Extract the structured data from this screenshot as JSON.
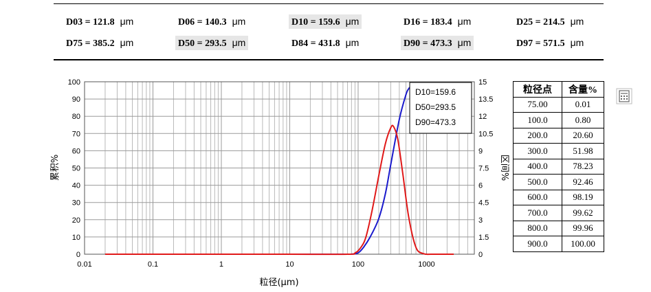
{
  "d_values": [
    [
      {
        "label": "D03",
        "value": "121.8",
        "unit": "μm",
        "highlight": false
      },
      {
        "label": "D06",
        "value": "140.3",
        "unit": "μm",
        "highlight": false
      },
      {
        "label": "D10",
        "value": "159.6",
        "unit": "μm",
        "highlight": true
      },
      {
        "label": "D16",
        "value": "183.4",
        "unit": "μm",
        "highlight": false
      },
      {
        "label": "D25",
        "value": "214.5",
        "unit": "μm",
        "highlight": false
      }
    ],
    [
      {
        "label": "D75",
        "value": "385.2",
        "unit": "μm",
        "highlight": false
      },
      {
        "label": "D50",
        "value": "293.5",
        "unit": "μm",
        "highlight": true
      },
      {
        "label": "D84",
        "value": "431.8",
        "unit": "μm",
        "highlight": false
      },
      {
        "label": "D90",
        "value": "473.3",
        "unit": "μm",
        "highlight": true
      },
      {
        "label": "D97",
        "value": "571.5",
        "unit": "μm",
        "highlight": false
      }
    ]
  ],
  "chart_data": {
    "type": "line",
    "xlabel": "粒径(μm)",
    "ylabel_left": "累积%",
    "ylabel_right": "区间%",
    "x_scale": "log",
    "xlim": [
      0.01,
      5000
    ],
    "ylim_left": [
      0,
      100
    ],
    "ylim_right": [
      0,
      15
    ],
    "x_ticks": [
      "0.01",
      "0.1",
      "1",
      "10",
      "100",
      "1000"
    ],
    "y_ticks_left": [
      "0",
      "10",
      "20",
      "30",
      "40",
      "50",
      "60",
      "70",
      "80",
      "90",
      "100"
    ],
    "y_ticks_right": [
      "0",
      "1.5",
      "3",
      "4.5",
      "6",
      "7.5",
      "9",
      "10.5",
      "12",
      "13.5",
      "15"
    ],
    "grid": true,
    "legend": {
      "placement": "top-right",
      "entries": [
        "D10=159.6",
        "D50=293.5",
        "D90=473.3"
      ]
    },
    "series": [
      {
        "name": "累积%",
        "axis": "left",
        "color": "#1a1acc",
        "x": [
          0.02,
          1,
          10,
          60,
          80,
          100,
          120,
          150,
          200,
          250,
          300,
          400,
          500,
          550,
          580
        ],
        "y": [
          0,
          0,
          0,
          0,
          0.05,
          0.8,
          4,
          10,
          20.6,
          35,
          52,
          78.2,
          92.5,
          96,
          97
        ]
      },
      {
        "name": "区间%",
        "axis": "right",
        "color": "#e01818",
        "x": [
          0.02,
          1,
          10,
          70,
          90,
          110,
          130,
          160,
          200,
          250,
          300,
          330,
          380,
          450,
          550,
          700,
          900,
          1200,
          2500
        ],
        "y": [
          0,
          0,
          0,
          0,
          0.1,
          0.6,
          1.5,
          3.8,
          6.8,
          9.6,
          11,
          11.1,
          10,
          7,
          3.2,
          0.6,
          0.05,
          0,
          0
        ]
      }
    ]
  },
  "table": {
    "headers": [
      "粒径点",
      "含量%"
    ],
    "rows": [
      [
        "75.00",
        "0.01"
      ],
      [
        "100.0",
        "0.80"
      ],
      [
        "200.0",
        "20.60"
      ],
      [
        "300.0",
        "51.98"
      ],
      [
        "400.0",
        "78.23"
      ],
      [
        "500.0",
        "92.46"
      ],
      [
        "600.0",
        "98.19"
      ],
      [
        "700.0",
        "99.62"
      ],
      [
        "800.0",
        "99.96"
      ],
      [
        "900.0",
        "100.00"
      ]
    ]
  },
  "toolbar": {
    "calc_icon": "calculator-icon"
  }
}
